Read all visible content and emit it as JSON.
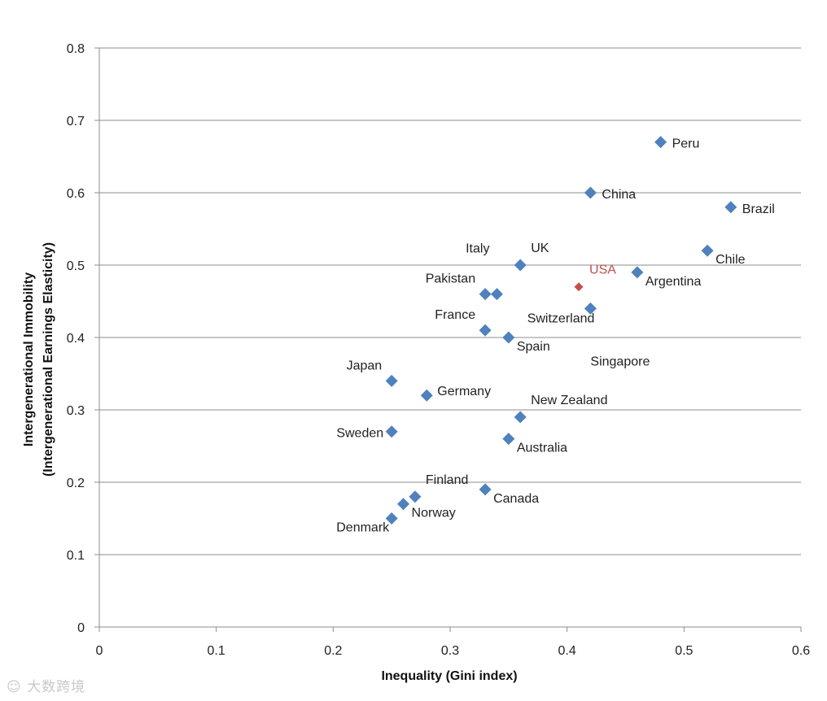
{
  "chart_data": {
    "type": "scatter",
    "xlabel": "Inequality (Gini index)",
    "ylabel_line1": "Intergenerational Immobility",
    "ylabel_line2": "(Intergenerational Earnings Elasticity)",
    "xlim": [
      0,
      0.6
    ],
    "ylim": [
      0,
      0.8
    ],
    "xticks": [
      "0",
      "0.1",
      "0.2",
      "0.3",
      "0.4",
      "0.5",
      "0.6"
    ],
    "yticks": [
      "0",
      "0.1",
      "0.2",
      "0.3",
      "0.4",
      "0.5",
      "0.6",
      "0.7",
      "0.8"
    ],
    "grid": "horizontal",
    "default_color": "#4f81bd",
    "highlight_color": "#c0504d",
    "points": [
      {
        "label": "Peru",
        "x": 0.48,
        "y": 0.67,
        "label_pos": "right"
      },
      {
        "label": "China",
        "x": 0.42,
        "y": 0.6,
        "label_pos": "right"
      },
      {
        "label": "Brazil",
        "x": 0.54,
        "y": 0.58,
        "label_pos": "right"
      },
      {
        "label": "Chile",
        "x": 0.52,
        "y": 0.52,
        "label_pos": "below-right"
      },
      {
        "label": "UK",
        "x": 0.36,
        "y": 0.5,
        "label_pos": "above-right"
      },
      {
        "label": "Italy",
        "x": 0.34,
        "y": 0.46,
        "label_pos": "above-left-far"
      },
      {
        "label": "Argentina",
        "x": 0.46,
        "y": 0.49,
        "label_pos": "below-right"
      },
      {
        "label": "USA",
        "x": 0.41,
        "y": 0.47,
        "label_pos": "above-right",
        "highlight": true
      },
      {
        "label": "Pakistan",
        "x": 0.33,
        "y": 0.46,
        "label_pos": "above-left"
      },
      {
        "label": "Switzerland",
        "x": 0.42,
        "y": 0.44,
        "label_pos": "left-up"
      },
      {
        "label": "Singapore",
        "x": 0.42,
        "y": 0.44,
        "label_pos": "below-right-far"
      },
      {
        "label": "France",
        "x": 0.33,
        "y": 0.41,
        "label_pos": "above-left"
      },
      {
        "label": "Spain",
        "x": 0.35,
        "y": 0.4,
        "label_pos": "below-right"
      },
      {
        "label": "Japan",
        "x": 0.25,
        "y": 0.34,
        "label_pos": "above-left"
      },
      {
        "label": "Germany",
        "x": 0.28,
        "y": 0.32,
        "label_pos": "right-up"
      },
      {
        "label": "New Zealand",
        "x": 0.36,
        "y": 0.29,
        "label_pos": "above-right"
      },
      {
        "label": "Sweden",
        "x": 0.25,
        "y": 0.27,
        "label_pos": "left"
      },
      {
        "label": "Australia",
        "x": 0.35,
        "y": 0.26,
        "label_pos": "below-right"
      },
      {
        "label": "Canada",
        "x": 0.33,
        "y": 0.19,
        "label_pos": "below-right"
      },
      {
        "label": "Finland",
        "x": 0.27,
        "y": 0.18,
        "label_pos": "above-right"
      },
      {
        "label": "Norway",
        "x": 0.26,
        "y": 0.17,
        "label_pos": "below-right"
      },
      {
        "label": "Denmark",
        "x": 0.25,
        "y": 0.15,
        "label_pos": "below-left"
      },
      {
        "label": "",
        "x": 0.34,
        "y": 0.46,
        "label_pos": "none"
      }
    ]
  },
  "watermark_text": "大数跨境"
}
